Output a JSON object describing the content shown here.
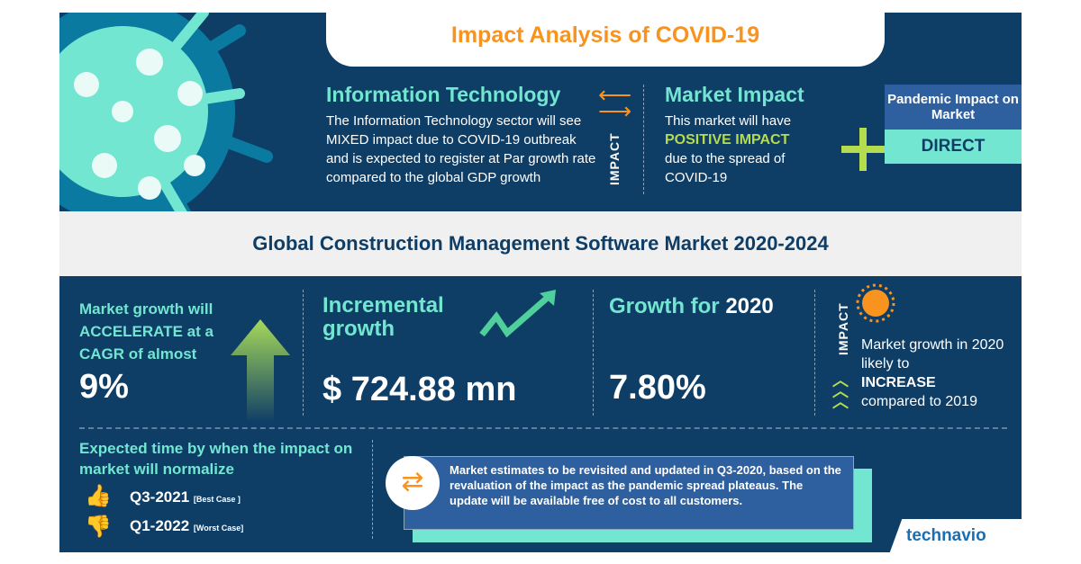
{
  "header": {
    "title": "Impact Analysis of COVID-19"
  },
  "sector": {
    "title": "Information Technology",
    "text": "The Information Technology sector will see MIXED  impact due to COVID-19 outbreak and is expected to register at Par growth rate compared to the global GDP growth"
  },
  "impact_label": "IMPACT",
  "market_impact": {
    "title": "Market Impact",
    "line1": "This market will have",
    "highlight": "POSITIVE IMPACT",
    "line2": "due to the spread of COVID-19"
  },
  "pandemic": {
    "title": "Pandemic Impact on Market",
    "value": "DIRECT"
  },
  "market_title": "Global Construction Management Software Market 2020-2024",
  "cagr": {
    "text": "Market growth will ACCELERATE at a CAGR of almost",
    "value": "9%"
  },
  "incremental": {
    "title": "Incremental growth",
    "value": "$ 724.88 mn"
  },
  "growth2020": {
    "title": "Growth for",
    "year": "2020",
    "value": "7.80%"
  },
  "impact2020": {
    "label": "IMPACT",
    "line1": "Market growth in 2020 likely to",
    "highlight": "INCREASE",
    "line2": "compared to 2019"
  },
  "normalize": {
    "title": "Expected time by when the impact on market will normalize",
    "best": "Q3-2021",
    "best_tag": "[Best Case ]",
    "worst": "Q1-2022",
    "worst_tag": "[Worst Case]"
  },
  "note": "Market estimates to be revisited and updated in Q3-2020, based on the revaluation of the impact as the pandemic spread plateaus. The update will be available free of cost to all customers.",
  "brand": "technavio",
  "colors": {
    "navy": "#0e3d66",
    "teal": "#72e6d1",
    "orange": "#f7931e",
    "lime": "#b5db4f"
  }
}
